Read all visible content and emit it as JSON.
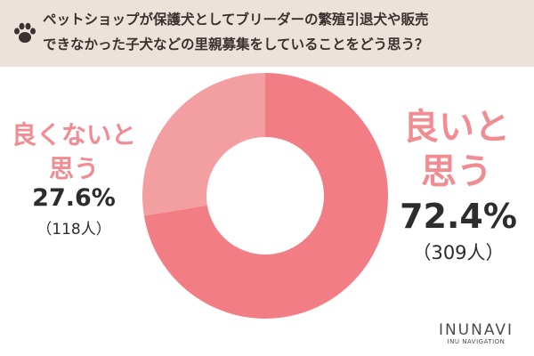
{
  "header": {
    "question_line1": "ペットショップが保護犬としてブリーダーの繁殖引退犬や販売",
    "question_line2": "できなかった子犬などの里親募集をしていることをどう思う？",
    "icon": "paw-icon"
  },
  "chart_data": {
    "type": "pie",
    "categories": [
      "良いと思う",
      "良くないと思う"
    ],
    "values": [
      72.4,
      27.6
    ],
    "counts": [
      "309人",
      "118人"
    ],
    "colors": [
      "#f27d84",
      "#f39ea1"
    ],
    "donut": true
  },
  "labels": {
    "left": {
      "line1": "良くないと",
      "line2": "思う",
      "percent": "27.6%",
      "count": "（118人）"
    },
    "right": {
      "line1": "良いと",
      "line2": "思う",
      "percent": "72.4%",
      "count": "（309人）"
    }
  },
  "logo": {
    "main": "INUNAVI",
    "sub": "INU NAVIGATION"
  },
  "colors": {
    "header_bg": "#ebe2d9",
    "accent_text": "#f08c92",
    "dark_text": "#2d2d2d"
  }
}
